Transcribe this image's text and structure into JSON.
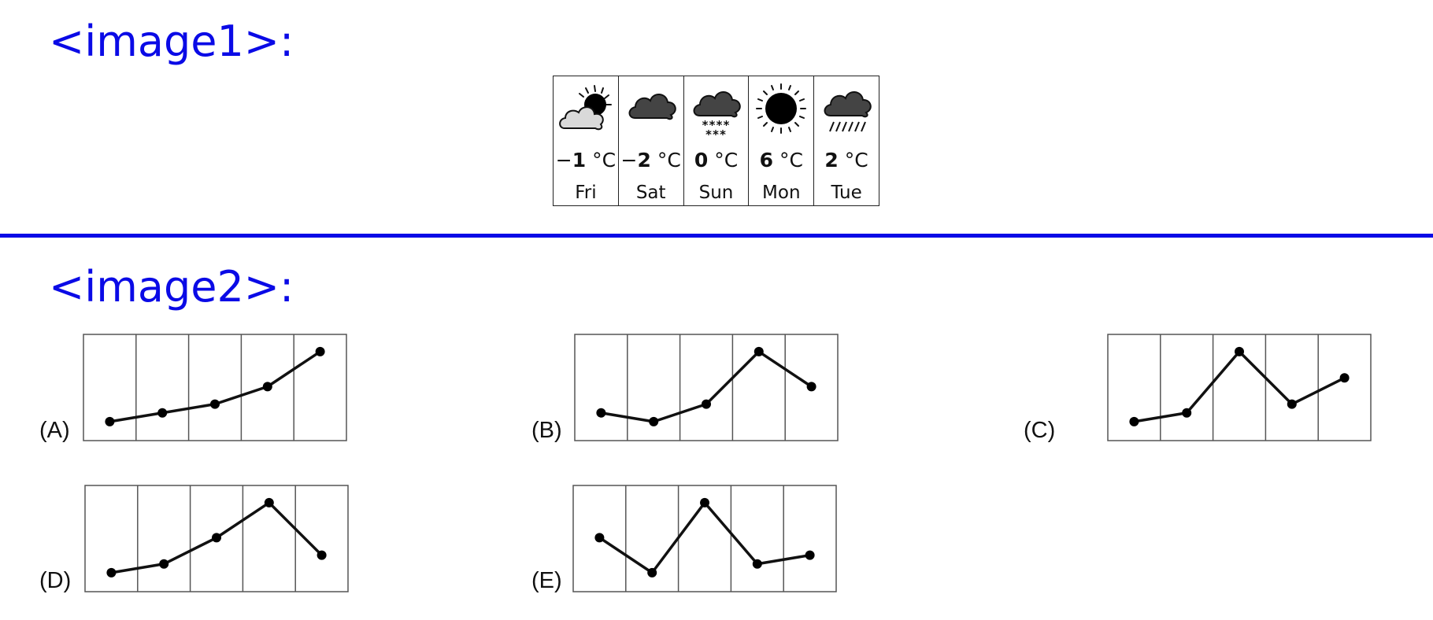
{
  "header1": {
    "title": "<image1>:"
  },
  "header2": {
    "title": "<image2>:"
  },
  "forecast": [
    {
      "day": "Fri",
      "temp": "1",
      "sign": "−",
      "unit": "°C",
      "icon": "partly-cloudy-icon"
    },
    {
      "day": "Sat",
      "temp": "2",
      "sign": "−",
      "unit": "°C",
      "icon": "cloud-icon"
    },
    {
      "day": "Sun",
      "temp": "0",
      "sign": "",
      "unit": "°C",
      "icon": "snow-cloud-icon"
    },
    {
      "day": "Mon",
      "temp": "6",
      "sign": "",
      "unit": "°C",
      "icon": "sun-icon"
    },
    {
      "day": "Tue",
      "temp": "2",
      "sign": "",
      "unit": "°C",
      "icon": "rain-cloud-icon"
    }
  ],
  "chart_data": [
    {
      "type": "line",
      "label": "(A)",
      "x": [
        1,
        2,
        3,
        4,
        5
      ],
      "y": [
        1,
        2,
        3,
        5,
        9
      ],
      "ylim": [
        0,
        9.8
      ]
    },
    {
      "type": "line",
      "label": "(B)",
      "x": [
        1,
        2,
        3,
        4,
        5
      ],
      "y": [
        2,
        1,
        3,
        9,
        5
      ],
      "ylim": [
        0,
        9.8
      ]
    },
    {
      "type": "line",
      "label": "(C)",
      "x": [
        1,
        2,
        3,
        4,
        5
      ],
      "y": [
        1,
        2,
        9,
        3,
        6
      ],
      "ylim": [
        0,
        9.8
      ]
    },
    {
      "type": "line",
      "label": "(D)",
      "x": [
        1,
        2,
        3,
        4,
        5
      ],
      "y": [
        1,
        2,
        5,
        9,
        3
      ],
      "ylim": [
        0,
        9.8
      ]
    },
    {
      "type": "line",
      "label": "(E)",
      "x": [
        1,
        2,
        3,
        4,
        5
      ],
      "y": [
        5,
        1,
        9,
        2,
        3
      ],
      "ylim": [
        0,
        9.8
      ]
    }
  ]
}
